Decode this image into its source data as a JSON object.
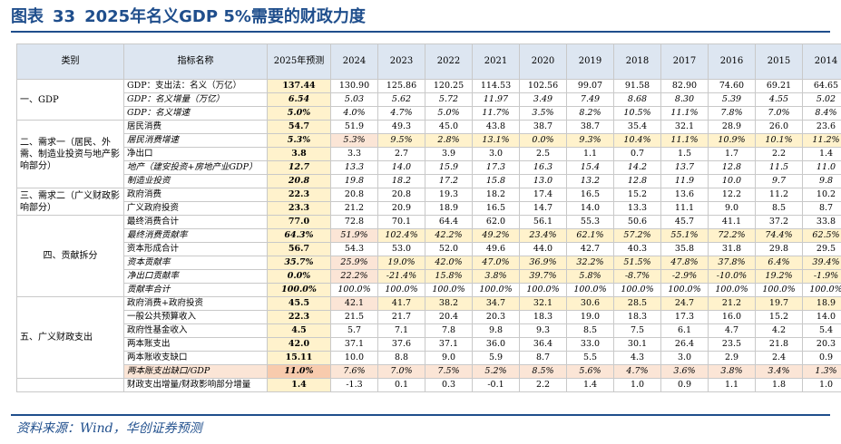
{
  "title": {
    "prefix": "图表",
    "number": "33",
    "text": "2025年名义GDP 5%需要的财政力度"
  },
  "source": "资料来源：Wind，华创证券预测",
  "table": {
    "headers": [
      "类别",
      "指标名称",
      "2025年预测",
      "2024",
      "2023",
      "2022",
      "2021",
      "2020",
      "2019",
      "2018",
      "2017",
      "2016",
      "2015",
      "2014"
    ],
    "groups": [
      {
        "category": "一、GDP",
        "rows": [
          {
            "label": "GDP：支出法：名义（万亿）",
            "values": [
              "137.44",
              "130.90",
              "125.86",
              "120.25",
              "114.53",
              "102.56",
              "99.07",
              "91.58",
              "82.90",
              "74.60",
              "69.21",
              "64.65"
            ]
          },
          {
            "label": "GDP：名义增量（万亿）",
            "values": [
              "6.54",
              "5.03",
              "5.62",
              "5.72",
              "11.97",
              "3.49",
              "7.49",
              "8.68",
              "8.30",
              "5.39",
              "4.55",
              "5.02"
            ],
            "italic": true
          },
          {
            "label": "GDP：名义增速",
            "values": [
              "5.0%",
              "4.0%",
              "4.7%",
              "5.0%",
              "11.7%",
              "3.5%",
              "8.2%",
              "10.5%",
              "11.1%",
              "7.8%",
              "7.0%",
              "8.4%"
            ],
            "italic": true
          }
        ]
      },
      {
        "category": "二、需求一（居民、外需、制造业投资与地产影响部分）",
        "rows": [
          {
            "label": "居民消费",
            "values": [
              "54.7",
              "51.9",
              "49.3",
              "45.0",
              "43.8",
              "38.7",
              "38.7",
              "35.4",
              "32.1",
              "28.9",
              "26.0",
              "23.6"
            ]
          },
          {
            "label": "居民消费增速",
            "values": [
              "5.3%",
              "5.3%",
              "9.5%",
              "2.8%",
              "13.1%",
              "0.0%",
              "9.3%",
              "10.4%",
              "11.1%",
              "10.9%",
              "10.1%",
              "11.2%"
            ],
            "italic": true,
            "highlight": true
          },
          {
            "label": "净出口",
            "values": [
              "3.8",
              "3.3",
              "2.7",
              "3.9",
              "3.0",
              "2.5",
              "1.1",
              "0.7",
              "1.5",
              "1.7",
              "2.2",
              "1.4"
            ]
          },
          {
            "label": "地产（建安投资+房地产业GDP）",
            "values": [
              "12.7",
              "13.3",
              "14.0",
              "15.9",
              "17.3",
              "16.3",
              "15.4",
              "14.2",
              "13.7",
              "12.8",
              "11.5",
              "11.0"
            ],
            "italic": true
          },
          {
            "label": "制造业投资",
            "values": [
              "20.8",
              "19.8",
              "18.2",
              "17.2",
              "15.8",
              "13.0",
              "13.2",
              "12.8",
              "11.9",
              "10.0",
              "9.7",
              "9.8"
            ],
            "italic": true
          }
        ]
      },
      {
        "category": "三、需求二（广义财政影响部分）",
        "rows": [
          {
            "label": "政府消费",
            "values": [
              "22.3",
              "20.8",
              "20.8",
              "19.3",
              "18.2",
              "17.4",
              "16.5",
              "15.2",
              "13.6",
              "12.2",
              "11.2",
              "10.2"
            ]
          },
          {
            "label": "广义政府投资",
            "values": [
              "23.3",
              "21.2",
              "20.9",
              "18.9",
              "16.5",
              "14.7",
              "14.0",
              "13.3",
              "11.1",
              "9.0",
              "8.5",
              "8.7"
            ]
          }
        ]
      },
      {
        "category": "四、贡献拆分",
        "rows": [
          {
            "label": "最终消费合计",
            "values": [
              "77.0",
              "72.8",
              "70.1",
              "64.4",
              "62.0",
              "56.1",
              "55.3",
              "50.6",
              "45.7",
              "41.1",
              "37.2",
              "33.8"
            ]
          },
          {
            "label": "最终消费贡献率",
            "values": [
              "64.3%",
              "51.9%",
              "102.4%",
              "42.2%",
              "49.2%",
              "23.4%",
              "62.1%",
              "57.2%",
              "55.1%",
              "72.2%",
              "74.4%",
              "62.5%"
            ],
            "italic": true,
            "highlight": true
          },
          {
            "label": "资本形成合计",
            "values": [
              "56.7",
              "54.3",
              "53.0",
              "52.0",
              "49.6",
              "44.0",
              "42.7",
              "40.3",
              "35.8",
              "31.8",
              "29.8",
              "29.5"
            ]
          },
          {
            "label": "资本贡献率",
            "values": [
              "35.7%",
              "25.9%",
              "19.0%",
              "42.0%",
              "47.0%",
              "36.9%",
              "32.2%",
              "51.5%",
              "47.8%",
              "37.8%",
              "6.4%",
              "39.4%"
            ],
            "italic": true,
            "highlight": true
          },
          {
            "label": "净出口贡献率",
            "values": [
              "0.0%",
              "22.2%",
              "-21.4%",
              "15.8%",
              "3.8%",
              "39.7%",
              "5.8%",
              "-8.7%",
              "-2.9%",
              "-10.0%",
              "19.2%",
              "-1.9%"
            ],
            "italic": true,
            "highlight": true
          },
          {
            "label": "贡献率合计",
            "values": [
              "100.0%",
              "100.0%",
              "100.0%",
              "100.0%",
              "100.0%",
              "100.0%",
              "100.0%",
              "100.0%",
              "100.0%",
              "100.0%",
              "100.0%",
              "100.0%"
            ],
            "italic": true
          }
        ]
      },
      {
        "category": "五、广义财政支出",
        "rows": [
          {
            "label": "政府消费+政府投资",
            "values": [
              "45.5",
              "42.1",
              "41.7",
              "38.2",
              "34.7",
              "32.1",
              "30.6",
              "28.5",
              "24.7",
              "21.2",
              "19.7",
              "18.9"
            ],
            "highlight": true
          },
          {
            "label": "一般公共预算收入",
            "values": [
              "22.3",
              "21.5",
              "21.7",
              "20.4",
              "20.3",
              "18.3",
              "19.0",
              "18.3",
              "17.3",
              "16.0",
              "15.2",
              "14.0"
            ]
          },
          {
            "label": "政府性基金收入",
            "values": [
              "4.5",
              "5.7",
              "7.1",
              "7.8",
              "9.8",
              "9.3",
              "8.5",
              "7.5",
              "6.1",
              "4.7",
              "4.2",
              "5.4"
            ]
          },
          {
            "label": "两本账支出",
            "values": [
              "42.0",
              "37.1",
              "37.6",
              "37.1",
              "36.0",
              "36.4",
              "33.0",
              "30.1",
              "26.4",
              "23.5",
              "21.8",
              "20.3"
            ]
          },
          {
            "label": "两本账收支缺口",
            "values": [
              "15.11",
              "10.0",
              "8.8",
              "9.0",
              "5.9",
              "8.7",
              "5.5",
              "4.3",
              "3.0",
              "2.9",
              "2.4",
              "0.9"
            ]
          },
          {
            "label": "两本账支出缺口/GDP",
            "values": [
              "11.0%",
              "7.6%",
              "7.0%",
              "7.5%",
              "5.2%",
              "8.5%",
              "5.6%",
              "4.7%",
              "3.6%",
              "3.8%",
              "3.4%",
              "1.3%"
            ],
            "italic": true,
            "pink": true
          }
        ]
      },
      {
        "category": "",
        "rows": [
          {
            "label": "财政支出增量/财政影响部分增量",
            "values": [
              "1.4",
              "-1.3",
              "0.1",
              "0.3",
              "-0.1",
              "2.2",
              "1.4",
              "1.0",
              "0.9",
              "1.1",
              "1.8",
              "1.0"
            ]
          }
        ]
      }
    ]
  },
  "colors": {
    "title": "#1f4e8c",
    "header_bg": "#dde6f1",
    "forecast_bg": "#fff2cc",
    "highlight_bg": "#fff2cc",
    "pink_bg": "#fbe5d6"
  }
}
